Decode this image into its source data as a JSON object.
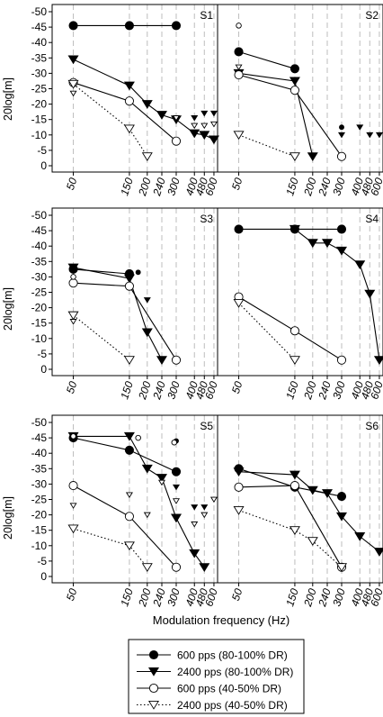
{
  "figure": {
    "xlabel": "Modulation frequency (Hz)",
    "ylabel": "20log[m]",
    "x_tick_labels": [
      "50",
      "150",
      "200",
      "240",
      "300",
      "400",
      "480",
      "600"
    ],
    "y_tick_labels": [
      "-50",
      "-45",
      "-40",
      "-35",
      "-30",
      "-25",
      "-20",
      "-15",
      "-10",
      "-5",
      "0"
    ]
  },
  "legend": {
    "entries": [
      {
        "label": "600 pps (80-100% DR)",
        "marker": "circle-filled",
        "line": "solid"
      },
      {
        "label": "2400 pps (80-100% DR)",
        "marker": "triangle-down-filled",
        "line": "solid"
      },
      {
        "label": "600 pps (40-50% DR)",
        "marker": "circle-open",
        "line": "solid"
      },
      {
        "label": "2400 pps (40-50% DR)",
        "marker": "triangle-down-open",
        "line": "dotted"
      }
    ]
  },
  "colors": {
    "ink": "#000000",
    "grid_dashed": "#bdbdbd",
    "open_fill": "#ffffff"
  },
  "chart_data": [
    {
      "type": "line",
      "panel_label": "S1",
      "x": [
        50,
        150,
        200,
        240,
        300,
        400,
        480,
        600
      ],
      "ylim": [
        0,
        -50
      ],
      "y_axis_inverted": true,
      "series": [
        {
          "name": "600 pps (80-100% DR)",
          "points": [
            [
              50,
              -45.5
            ],
            [
              150,
              -45.5
            ],
            [
              300,
              -45.5
            ]
          ],
          "unconnected": []
        },
        {
          "name": "2400 pps (80-100% DR)",
          "points": [
            [
              50,
              -34.5
            ],
            [
              150,
              -26
            ],
            [
              200,
              -20
            ],
            [
              240,
              -16.5
            ],
            [
              300,
              -15
            ],
            [
              400,
              -10.5
            ],
            [
              480,
              -10
            ],
            [
              600,
              -8.5
            ]
          ],
          "unconnected": [
            [
              400,
              -15.5
            ],
            [
              480,
              -17
            ],
            [
              600,
              -17
            ]
          ]
        },
        {
          "name": "600 pps (40-50% DR)",
          "points": [
            [
              50,
              -27
            ],
            [
              150,
              -21
            ],
            [
              300,
              -8
            ]
          ],
          "unconnected": []
        },
        {
          "name": "2400 pps (40-50% DR)",
          "points": [
            [
              50,
              -26.5
            ],
            [
              150,
              -12
            ],
            [
              200,
              -3
            ]
          ],
          "unconnected": [
            [
              50,
              -23.5
            ],
            [
              300,
              -15.5
            ],
            [
              400,
              -13
            ],
            [
              480,
              -13
            ],
            [
              600,
              -13.5
            ]
          ]
        }
      ]
    },
    {
      "type": "line",
      "panel_label": "S2",
      "x": [
        50,
        150,
        200,
        240,
        300,
        400,
        480,
        600
      ],
      "ylim": [
        0,
        -50
      ],
      "y_axis_inverted": true,
      "series": [
        {
          "name": "600 pps (80-100% DR)",
          "points": [
            [
              50,
              -37
            ],
            [
              150,
              -31.5
            ]
          ],
          "unconnected": [
            [
              300,
              -12.5
            ]
          ]
        },
        {
          "name": "2400 pps (80-100% DR)",
          "points": [
            [
              50,
              -30
            ],
            [
              150,
              -27.5
            ],
            [
              200,
              -3
            ]
          ],
          "unconnected": [
            [
              300,
              -10
            ],
            [
              400,
              -12.5
            ],
            [
              480,
              -10
            ],
            [
              600,
              -10
            ]
          ]
        },
        {
          "name": "600 pps (40-50% DR)",
          "points": [
            [
              50,
              -29.5
            ],
            [
              150,
              -24.5
            ],
            [
              300,
              -3
            ]
          ],
          "unconnected": [
            [
              50,
              -45.5
            ]
          ]
        },
        {
          "name": "2400 pps (40-50% DR)",
          "points": [
            [
              50,
              -10
            ],
            [
              150,
              -3
            ]
          ],
          "unconnected": [
            [
              50,
              -32
            ]
          ]
        }
      ]
    },
    {
      "type": "line",
      "panel_label": "S3",
      "x": [
        50,
        150,
        200,
        240,
        300,
        400,
        480,
        600
      ],
      "ylim": [
        0,
        -50
      ],
      "y_axis_inverted": true,
      "series": [
        {
          "name": "600 pps (80-100% DR)",
          "points": [
            [
              50,
              -32.5
            ],
            [
              150,
              -31
            ]
          ],
          "unconnected": [
            [
              150,
              -30
            ],
            [
              165,
              -31.5
            ]
          ]
        },
        {
          "name": "2400 pps (80-100% DR)",
          "points": [
            [
              50,
              -33
            ],
            [
              150,
              -29.5
            ],
            [
              200,
              -12
            ],
            [
              240,
              -3
            ]
          ],
          "unconnected": [
            [
              200,
              -22.5
            ]
          ]
        },
        {
          "name": "600 pps (40-50% DR)",
          "points": [
            [
              50,
              -28
            ],
            [
              150,
              -27
            ],
            [
              300,
              -3
            ]
          ],
          "unconnected": [
            [
              50,
              -30
            ]
          ]
        },
        {
          "name": "2400 pps (40-50% DR)",
          "points": [
            [
              50,
              -17.5
            ],
            [
              150,
              -3
            ]
          ],
          "unconnected": [
            [
              50,
              -15.5
            ]
          ]
        }
      ]
    },
    {
      "type": "line",
      "panel_label": "S4",
      "x": [
        50,
        150,
        200,
        240,
        300,
        400,
        480,
        600
      ],
      "ylim": [
        0,
        -50
      ],
      "y_axis_inverted": true,
      "series": [
        {
          "name": "600 pps (80-100% DR)",
          "points": [
            [
              50,
              -45.5
            ],
            [
              150,
              -45.5
            ],
            [
              300,
              -45.5
            ]
          ],
          "unconnected": []
        },
        {
          "name": "2400 pps (80-100% DR)",
          "points": [
            [
              150,
              -45.5
            ],
            [
              200,
              -41
            ],
            [
              240,
              -41
            ],
            [
              300,
              -38.5
            ],
            [
              400,
              -34
            ],
            [
              480,
              -24.5
            ],
            [
              600,
              -3
            ]
          ],
          "unconnected": []
        },
        {
          "name": "600 pps (40-50% DR)",
          "points": [
            [
              50,
              -23.5
            ],
            [
              150,
              -12.5
            ],
            [
              300,
              -3
            ]
          ],
          "unconnected": []
        },
        {
          "name": "2400 pps (40-50% DR)",
          "points": [
            [
              50,
              -21.5
            ],
            [
              150,
              -3
            ]
          ],
          "unconnected": []
        }
      ]
    },
    {
      "type": "line",
      "panel_label": "S5",
      "x": [
        50,
        150,
        200,
        240,
        300,
        400,
        480,
        600
      ],
      "ylim": [
        0,
        -50
      ],
      "y_axis_inverted": true,
      "series": [
        {
          "name": "600 pps (80-100% DR)",
          "points": [
            [
              50,
              -45
            ],
            [
              150,
              -41
            ],
            [
              300,
              -34
            ]
          ],
          "unconnected": [
            [
              300,
              -44
            ]
          ]
        },
        {
          "name": "2400 pps (80-100% DR)",
          "points": [
            [
              50,
              -45.5
            ],
            [
              150,
              -45.5
            ],
            [
              200,
              -35
            ],
            [
              240,
              -32
            ],
            [
              300,
              -19
            ],
            [
              400,
              -7.5
            ],
            [
              480,
              -3
            ]
          ],
          "unconnected": [
            [
              300,
              -29
            ],
            [
              400,
              -22.5
            ],
            [
              480,
              -22.5
            ]
          ]
        },
        {
          "name": "600 pps (40-50% DR)",
          "points": [
            [
              50,
              -29.5
            ],
            [
              150,
              -19.5
            ],
            [
              300,
              -3
            ]
          ],
          "unconnected": [
            [
              50,
              -45.5
            ],
            [
              165,
              -45
            ],
            [
              290,
              -43.5
            ]
          ]
        },
        {
          "name": "2400 pps (40-50% DR)",
          "points": [
            [
              50,
              -15.5
            ],
            [
              150,
              -10
            ],
            [
              200,
              -3
            ]
          ],
          "unconnected": [
            [
              50,
              -23
            ],
            [
              150,
              -26.5
            ],
            [
              200,
              -20
            ],
            [
              240,
              -30.5
            ],
            [
              300,
              -24.5
            ],
            [
              400,
              -17
            ],
            [
              480,
              -20
            ],
            [
              600,
              -25
            ]
          ]
        }
      ]
    },
    {
      "type": "line",
      "panel_label": "S6",
      "x": [
        50,
        150,
        200,
        240,
        300,
        400,
        480,
        600
      ],
      "ylim": [
        0,
        -50
      ],
      "y_axis_inverted": true,
      "series": [
        {
          "name": "600 pps (80-100% DR)",
          "points": [
            [
              50,
              -35
            ],
            [
              150,
              -29
            ],
            [
              300,
              -26
            ]
          ],
          "unconnected": []
        },
        {
          "name": "2400 pps (80-100% DR)",
          "points": [
            [
              50,
              -34
            ],
            [
              150,
              -33
            ],
            [
              200,
              -28
            ],
            [
              240,
              -27
            ],
            [
              300,
              -19.5
            ],
            [
              400,
              -13
            ],
            [
              600,
              -8
            ]
          ],
          "unconnected": []
        },
        {
          "name": "600 pps (40-50% DR)",
          "points": [
            [
              50,
              -29
            ],
            [
              150,
              -29.5
            ],
            [
              300,
              -3
            ]
          ],
          "unconnected": []
        },
        {
          "name": "2400 pps (40-50% DR)",
          "points": [
            [
              50,
              -21.5
            ],
            [
              150,
              -15
            ],
            [
              200,
              -11.5
            ],
            [
              300,
              -3
            ]
          ],
          "unconnected": []
        }
      ]
    }
  ]
}
